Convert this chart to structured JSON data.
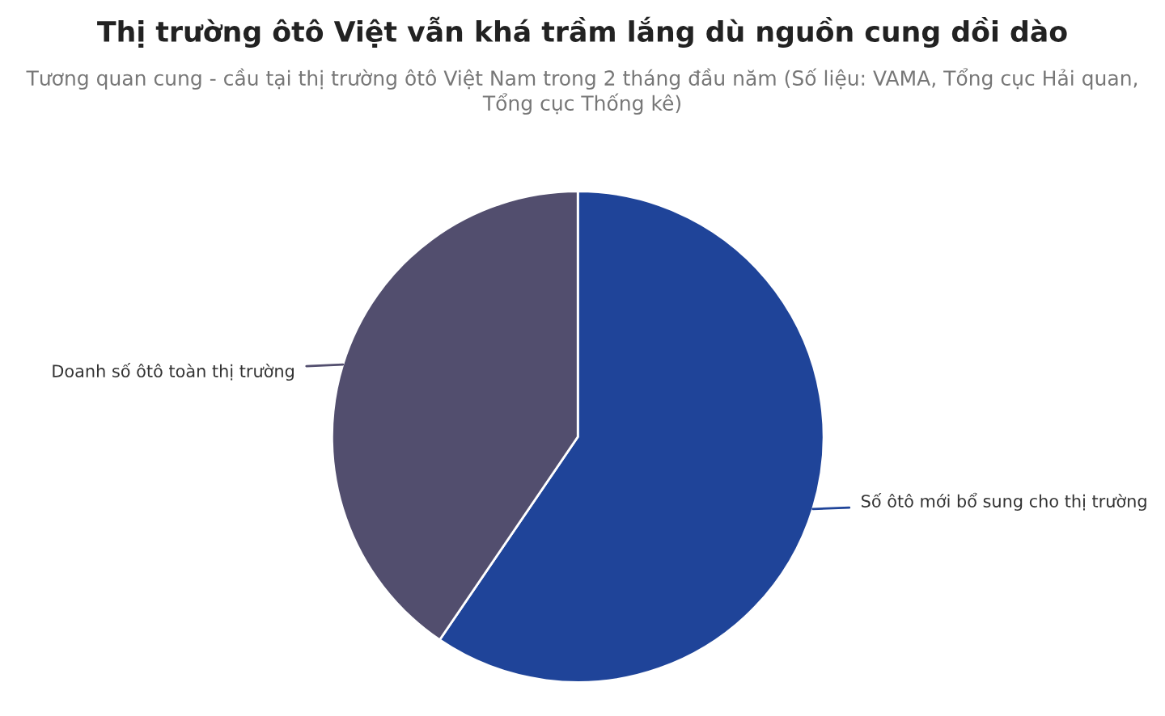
{
  "chart_data": {
    "type": "pie",
    "title": "Thị trường ôtô Việt vẫn khá trầm lắng dù nguồn cung dồi dào",
    "subtitle": "Tương quan cung - cầu tại thị trường ôtô Việt Nam trong 2 tháng đầu năm (Số liệu: VAMA, Tổng cục Hải quan, Tổng cục Thống kê)",
    "categories": [
      "Số ôtô mới bổ sung cho thị trường",
      "Doanh số ôtô toàn thị trường"
    ],
    "values": [
      59.5,
      40.5
    ],
    "colors": [
      "#1f4499",
      "#524e6e"
    ],
    "legend": false
  }
}
